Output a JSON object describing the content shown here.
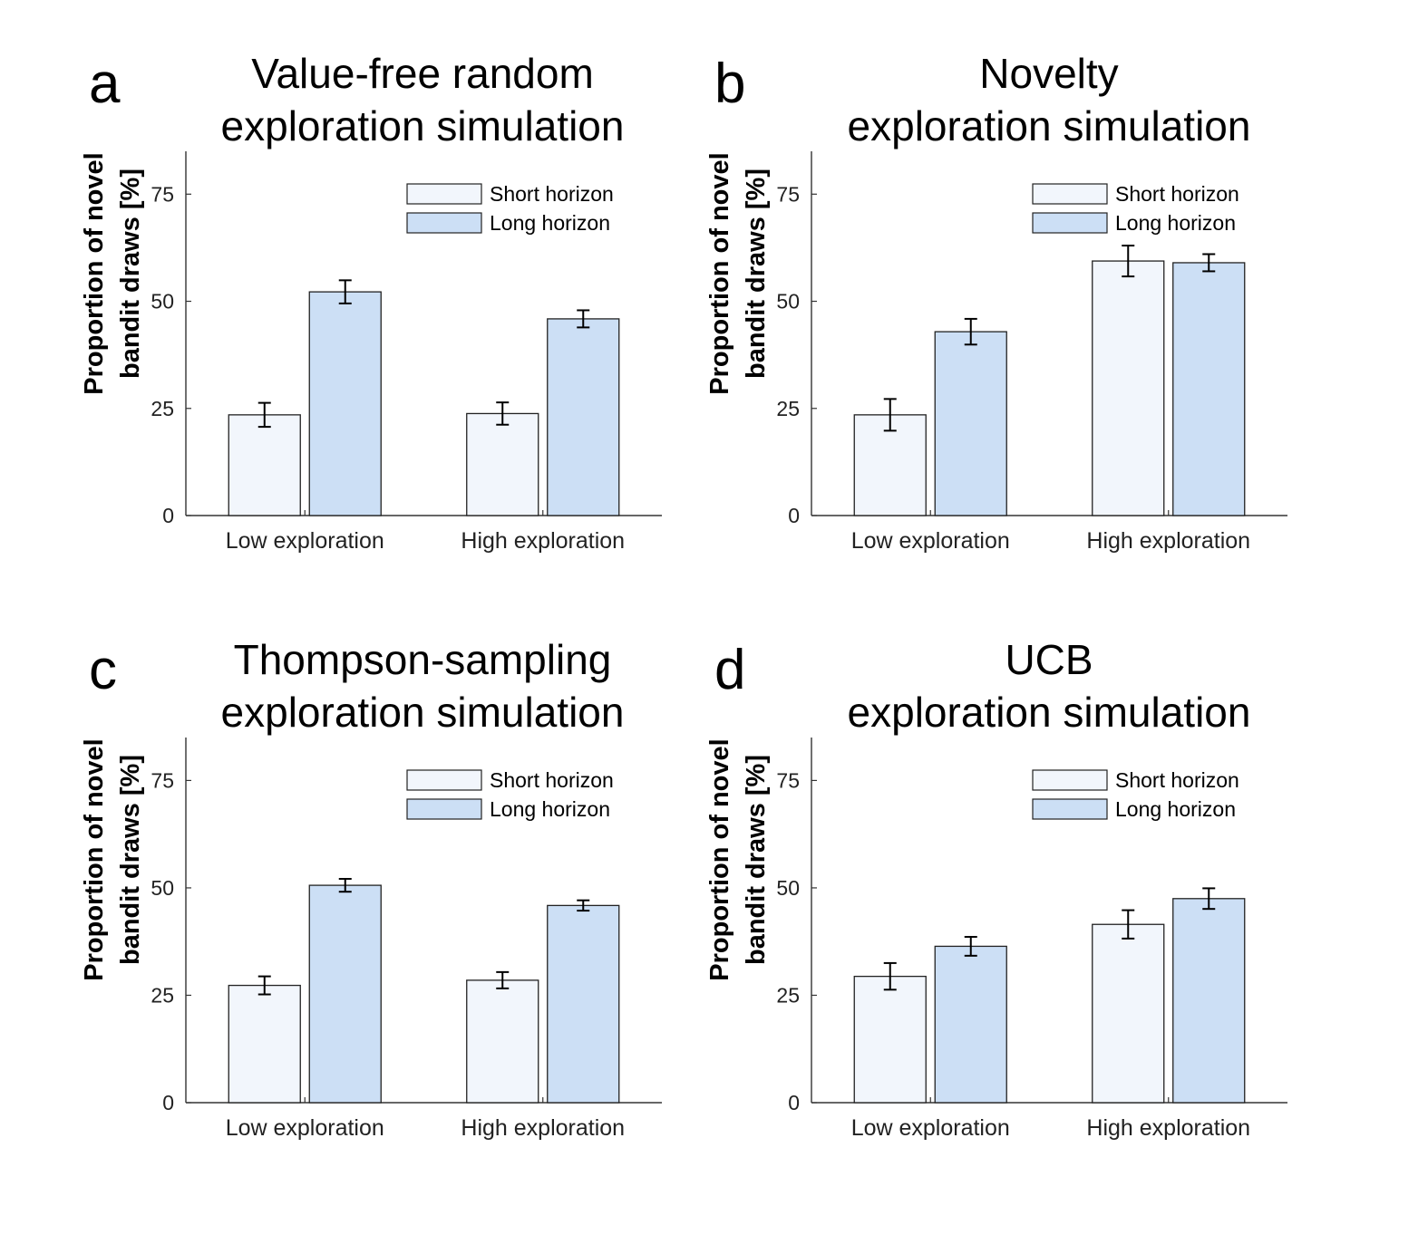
{
  "chart_data": [
    {
      "type": "bar",
      "panel": "a",
      "title": [
        "Value-free random",
        "exploration simulation"
      ],
      "ylabel": [
        "Proportion of novel",
        "bandit draws [%]"
      ],
      "xlabel": "",
      "categories": [
        "Low exploration",
        "High exploration"
      ],
      "ylim": [
        0,
        85
      ],
      "yticks": [
        0,
        25,
        50,
        75
      ],
      "legend_position": "top-right",
      "series": [
        {
          "name": "Short horizon",
          "color": "#f2f6fc",
          "values": [
            23.5,
            23.8
          ],
          "errors": [
            2.8,
            2.6
          ]
        },
        {
          "name": "Long horizon",
          "color": "#ccdff5",
          "values": [
            52.2,
            45.9
          ],
          "errors": [
            2.7,
            2.0
          ]
        }
      ]
    },
    {
      "type": "bar",
      "panel": "b",
      "title": [
        "Novelty",
        "exploration simulation"
      ],
      "ylabel": [
        "Proportion of novel",
        "bandit draws [%]"
      ],
      "xlabel": "",
      "categories": [
        "Low exploration",
        "High exploration"
      ],
      "ylim": [
        0,
        85
      ],
      "yticks": [
        0,
        25,
        50,
        75
      ],
      "legend_position": "top-right",
      "series": [
        {
          "name": "Short horizon",
          "color": "#f2f6fc",
          "values": [
            23.5,
            59.4
          ],
          "errors": [
            3.7,
            3.6
          ]
        },
        {
          "name": "Long horizon",
          "color": "#ccdff5",
          "values": [
            42.9,
            59.0
          ],
          "errors": [
            3.0,
            2.0
          ]
        }
      ]
    },
    {
      "type": "bar",
      "panel": "c",
      "title": [
        "Thompson-sampling",
        "exploration simulation"
      ],
      "ylabel": [
        "Proportion of novel",
        "bandit draws [%]"
      ],
      "xlabel": "",
      "categories": [
        "Low exploration",
        "High exploration"
      ],
      "ylim": [
        0,
        85
      ],
      "yticks": [
        0,
        25,
        50,
        75
      ],
      "legend_position": "top-right",
      "series": [
        {
          "name": "Short horizon",
          "color": "#f2f6fc",
          "values": [
            27.3,
            28.5
          ],
          "errors": [
            2.1,
            1.9
          ]
        },
        {
          "name": "Long horizon",
          "color": "#ccdff5",
          "values": [
            50.6,
            45.9
          ],
          "errors": [
            1.5,
            1.2
          ]
        }
      ]
    },
    {
      "type": "bar",
      "panel": "d",
      "title": [
        "UCB",
        "exploration simulation"
      ],
      "ylabel": [
        "Proportion of novel",
        "bandit draws [%]"
      ],
      "xlabel": "",
      "categories": [
        "Low exploration",
        "High exploration"
      ],
      "ylim": [
        0,
        85
      ],
      "yticks": [
        0,
        25,
        50,
        75
      ],
      "legend_position": "top-right",
      "series": [
        {
          "name": "Short horizon",
          "color": "#f2f6fc",
          "values": [
            29.4,
            41.5
          ],
          "errors": [
            3.1,
            3.3
          ]
        },
        {
          "name": "Long horizon",
          "color": "#ccdff5",
          "values": [
            36.4,
            47.5
          ],
          "errors": [
            2.2,
            2.4
          ]
        }
      ]
    }
  ]
}
